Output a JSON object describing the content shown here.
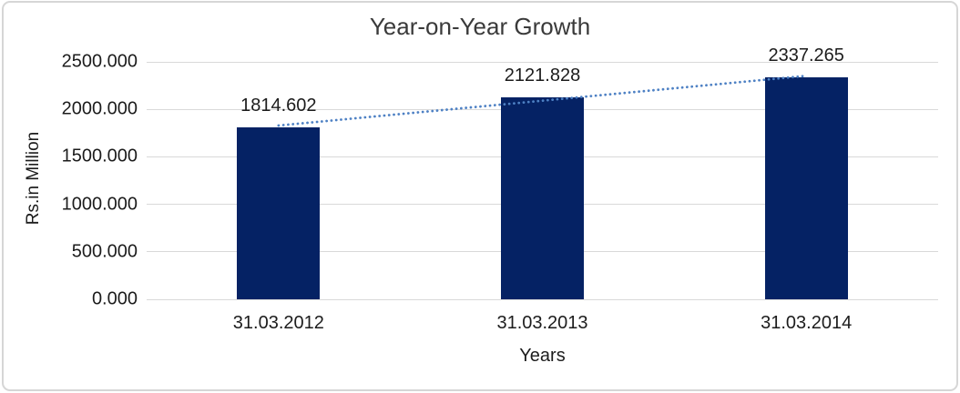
{
  "chart_data": {
    "type": "bar",
    "title": "Year-on-Year Growth",
    "xlabel": "Years",
    "ylabel": "Rs.in Million",
    "categories": [
      "31.03.2012",
      "31.03.2013",
      "31.03.2014"
    ],
    "values": [
      1814.602,
      2121.828,
      2337.265
    ],
    "value_labels": [
      "1814.602",
      "2121.828",
      "2337.265"
    ],
    "ylim": [
      0,
      2500
    ],
    "ytick_step": 500,
    "ytick_labels": [
      "0.000",
      "500.000",
      "1000.000",
      "1500.000",
      "2000.000",
      "2500.000"
    ],
    "grid": true,
    "legend": "none",
    "trendline": {
      "type": "linear",
      "style": "dotted"
    },
    "colors": {
      "bar": "#052264",
      "trendline": "#4E81C4",
      "gridline": "#D9D9D9",
      "border": "#D6D6D6",
      "title_text": "#3A3A3A",
      "tick_text": "#1C1C1C",
      "background": "#FFFFFF"
    }
  }
}
